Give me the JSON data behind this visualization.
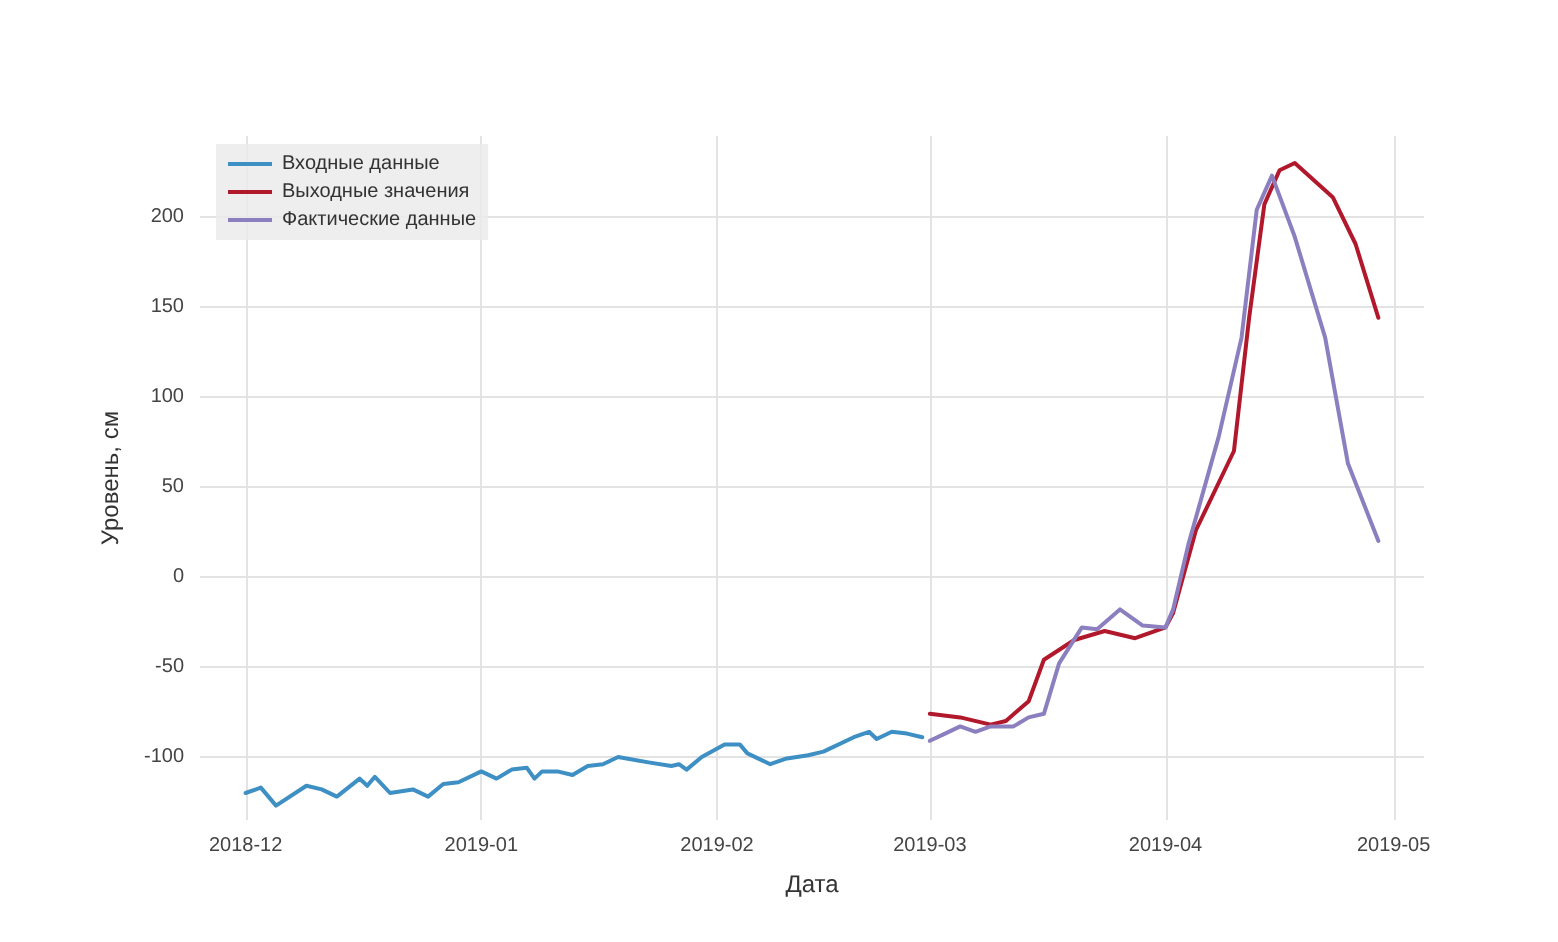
{
  "chart_data": {
    "type": "line",
    "xlabel": "Дата",
    "ylabel": "Уровень, см",
    "xlim": [
      "2018-11-25",
      "2019-05-05"
    ],
    "xticks": [
      "2018-12",
      "2019-01",
      "2019-02",
      "2019-03",
      "2019-04",
      "2019-05"
    ],
    "ylim": [
      -135,
      245
    ],
    "yticks": [
      -100,
      -50,
      0,
      50,
      100,
      150,
      200
    ],
    "grid": true,
    "legend": "top left",
    "line_style": "solid",
    "marker": "none",
    "series": [
      {
        "name": "Входные данные",
        "color": "#3d8fc4",
        "x": [
          "2018-12-01",
          "2018-12-03",
          "2018-12-05",
          "2018-12-09",
          "2018-12-11",
          "2018-12-13",
          "2018-12-16",
          "2018-12-17",
          "2018-12-18",
          "2018-12-20",
          "2018-12-23",
          "2018-12-25",
          "2018-12-27",
          "2018-12-29",
          "2019-01-01",
          "2019-01-03",
          "2019-01-05",
          "2019-01-07",
          "2019-01-08",
          "2019-01-09",
          "2019-01-11",
          "2019-01-13",
          "2019-01-15",
          "2019-01-17",
          "2019-01-19",
          "2019-01-23",
          "2019-01-26",
          "2019-01-27",
          "2019-01-28",
          "2019-01-30",
          "2019-02-02",
          "2019-02-04",
          "2019-02-05",
          "2019-02-08",
          "2019-02-10",
          "2019-02-13",
          "2019-02-15",
          "2019-02-19",
          "2019-02-21",
          "2019-02-22",
          "2019-02-24",
          "2019-02-26",
          "2019-02-28"
        ],
        "values": [
          -120,
          -117,
          -127,
          -116,
          -118,
          -122,
          -112,
          -116,
          -111,
          -120,
          -118,
          -122,
          -115,
          -114,
          -108,
          -112,
          -107,
          -106,
          -112,
          -108,
          -108,
          -110,
          -105,
          -104,
          -100,
          -103,
          -105,
          -104,
          -107,
          -100,
          -93,
          -93,
          -98,
          -104,
          -101,
          -99,
          -97,
          -89,
          -86,
          -90,
          -86,
          -87,
          -89
        ]
      },
      {
        "name": "Выходные значения",
        "color": "#b2182b",
        "x": [
          "2019-03-01",
          "2019-03-05",
          "2019-03-09",
          "2019-03-11",
          "2019-03-14",
          "2019-03-16",
          "2019-03-20",
          "2019-03-24",
          "2019-03-28",
          "2019-04-01",
          "2019-04-02",
          "2019-04-05",
          "2019-04-10",
          "2019-04-12",
          "2019-04-14",
          "2019-04-16",
          "2019-04-18",
          "2019-04-23",
          "2019-04-26",
          "2019-04-29"
        ],
        "values": [
          -76,
          -78,
          -82,
          -80,
          -69,
          -46,
          -35,
          -30,
          -34,
          -28,
          -20,
          26,
          70,
          144,
          207,
          226,
          230,
          211,
          185,
          144
        ]
      },
      {
        "name": "Фактические данные",
        "color": "#8c7fbf",
        "x": [
          "2019-03-01",
          "2019-03-03",
          "2019-03-05",
          "2019-03-07",
          "2019-03-09",
          "2019-03-12",
          "2019-03-14",
          "2019-03-16",
          "2019-03-18",
          "2019-03-21",
          "2019-03-23",
          "2019-03-26",
          "2019-03-29",
          "2019-04-01",
          "2019-04-02",
          "2019-04-04",
          "2019-04-08",
          "2019-04-11",
          "2019-04-13",
          "2019-04-15",
          "2019-04-18",
          "2019-04-22",
          "2019-04-25",
          "2019-04-29"
        ],
        "values": [
          -91,
          -87,
          -83,
          -86,
          -83,
          -83,
          -78,
          -76,
          -48,
          -28,
          -29,
          -18,
          -27,
          -28,
          -18,
          18,
          78,
          133,
          204,
          223,
          189,
          133,
          63,
          20
        ]
      }
    ]
  }
}
